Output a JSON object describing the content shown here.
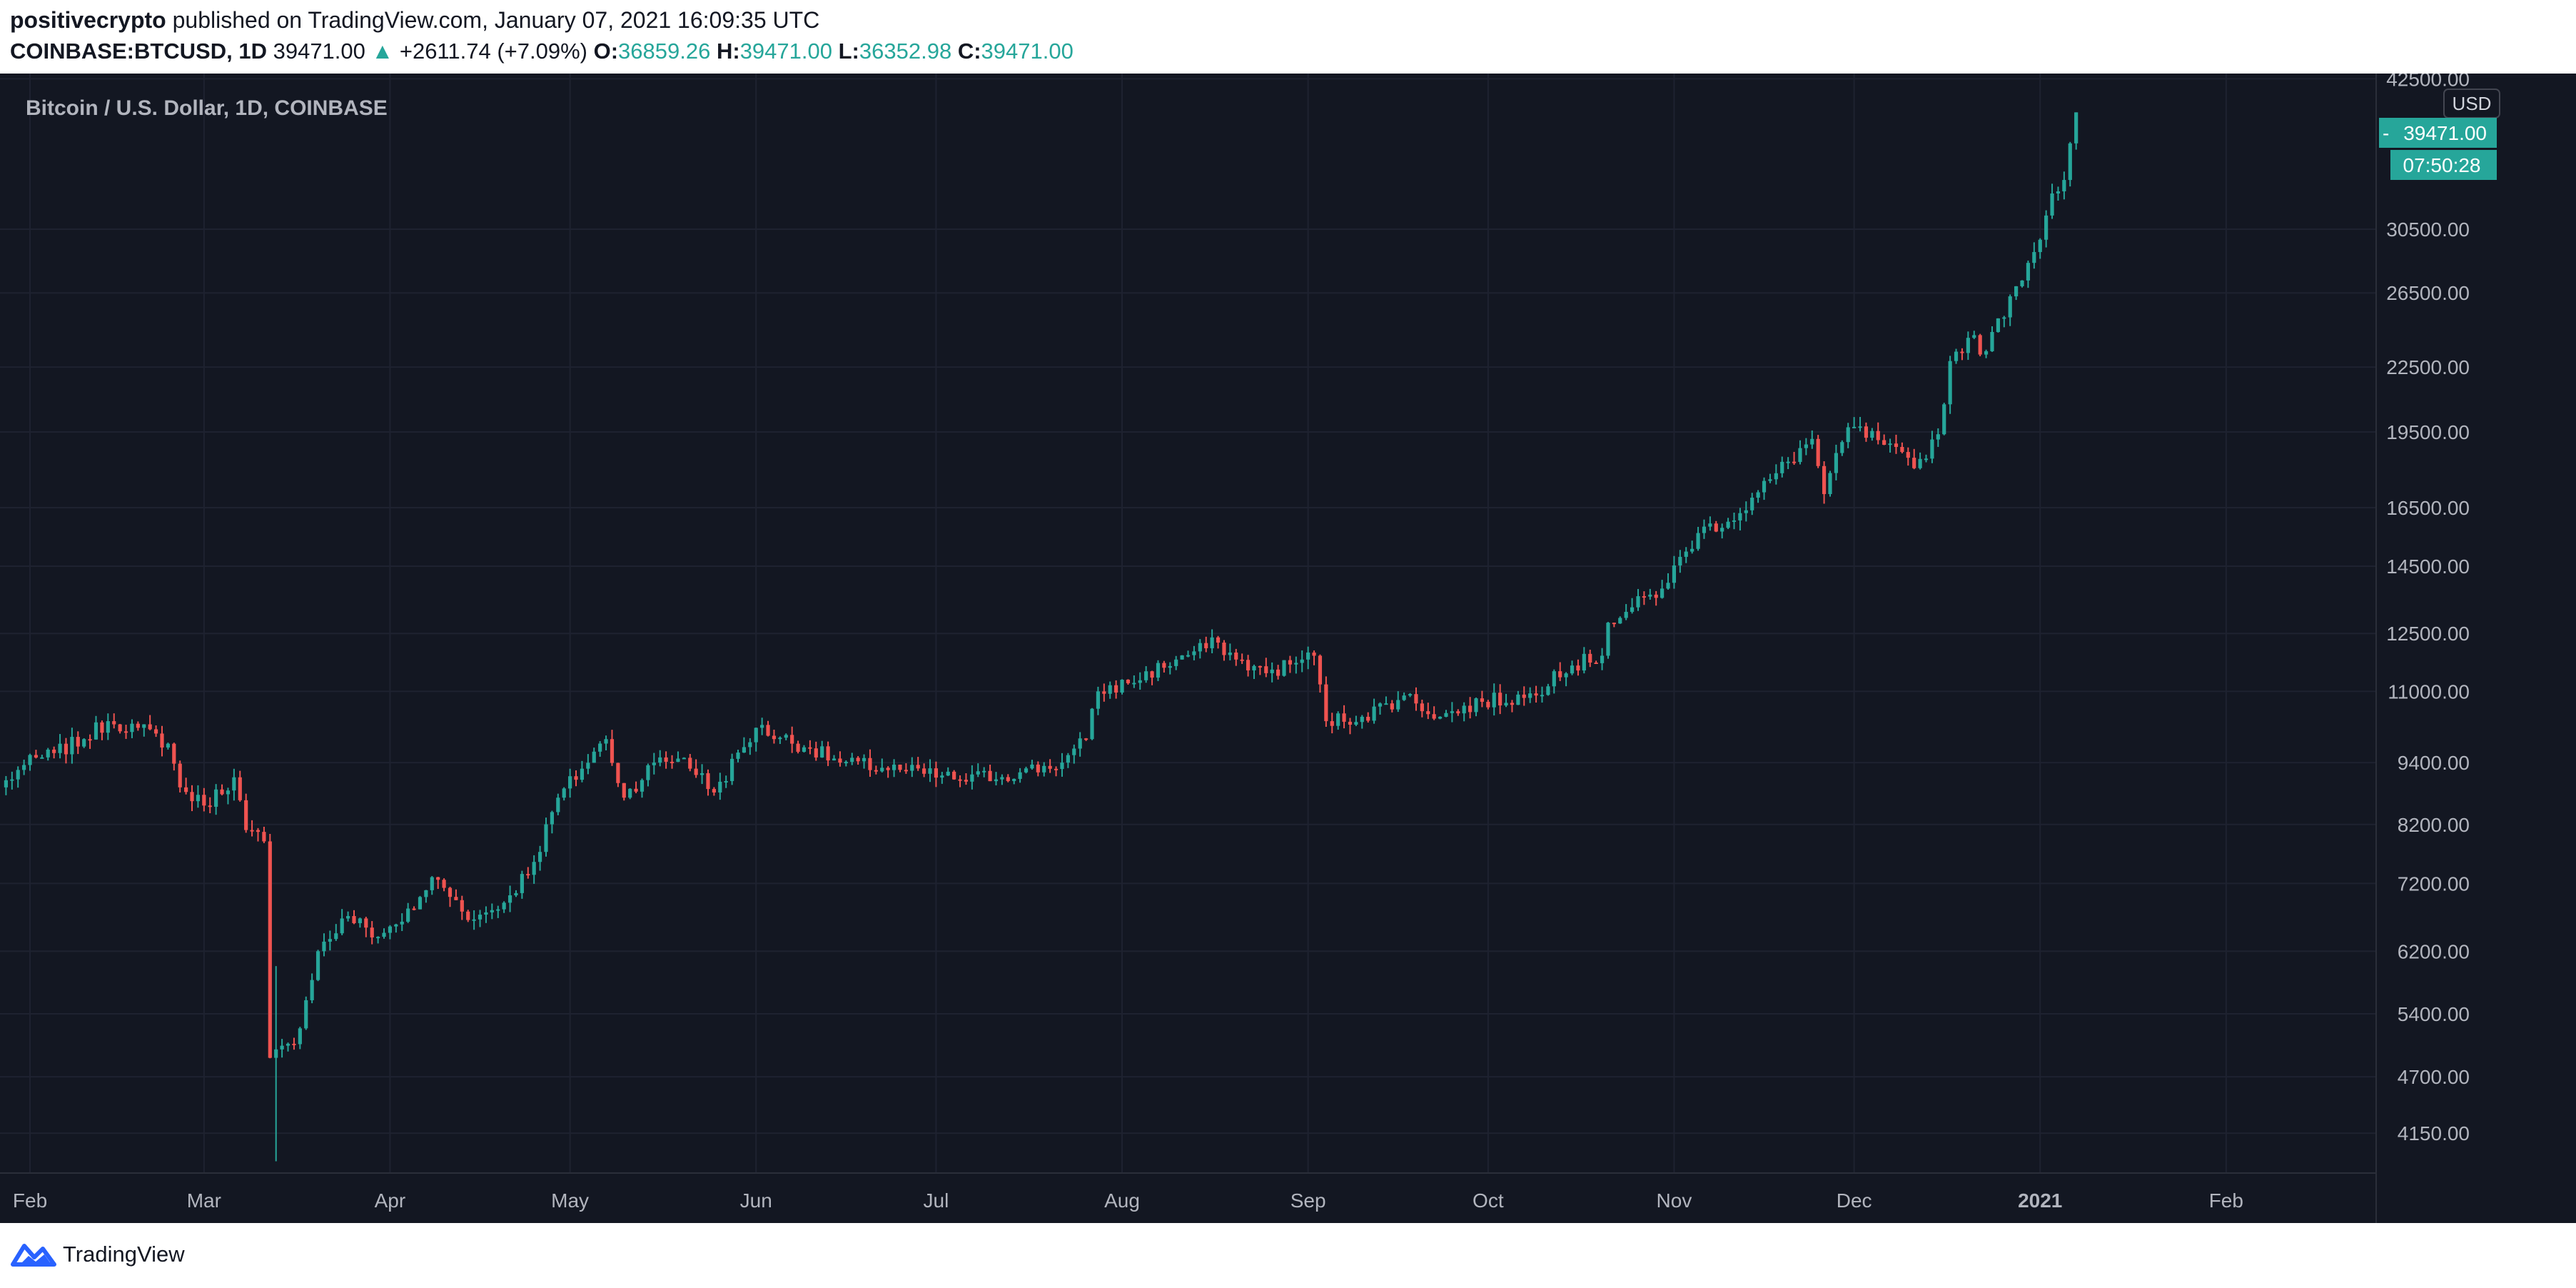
{
  "header": {
    "author": "positivecrypto",
    "published_text": "published on TradingView.com, January 07, 2021 16:09:35 UTC",
    "symbol": "COINBASE:BTCUSD, 1D",
    "last": "39471.00",
    "up_arrow": "▲",
    "change": "+2611.74 (+7.09%)",
    "o_label": "O:",
    "o_value": "36859.26",
    "h_label": "H:",
    "h_value": "39471.00",
    "l_label": "L:",
    "l_value": "36352.98",
    "c_label": "C:",
    "c_value": "39471.00"
  },
  "chart_title": "Bitcoin / U.S. Dollar, 1D, COINBASE",
  "currency_badge": "USD",
  "last_price_label": "39471.00",
  "countdown_label": "07:50:28",
  "footer_brand": "TradingView",
  "colors": {
    "background": "#131722",
    "grid": "#1e2230",
    "up": "#26a69a",
    "down": "#ef5350",
    "axis_text": "#b2b5be"
  },
  "chart_data": {
    "type": "candlestick",
    "title": "Bitcoin / U.S. Dollar, 1D, COINBASE",
    "y_scale": "log",
    "y_range": [
      3800,
      43000
    ],
    "y_ticks": [
      42500,
      30500,
      26500,
      22500,
      19500,
      16500,
      14500,
      12500,
      11000,
      9400,
      8200,
      7200,
      6200,
      5400,
      4700,
      4150
    ],
    "y_tick_labels": [
      "42500.00",
      "30500.00",
      "26500.00",
      "22500.00",
      "19500.00",
      "16500.00",
      "14500.00",
      "12500.00",
      "11000.00",
      "9400.00",
      "8200.00",
      "7200.00",
      "6200.00",
      "5400.00",
      "4700.00",
      "4150.00"
    ],
    "x_range": [
      "2020-01-27",
      "2021-02-26"
    ],
    "x_ticks": [
      "2020-02-01",
      "2020-03-01",
      "2020-04-01",
      "2020-05-01",
      "2020-06-01",
      "2020-07-01",
      "2020-08-01",
      "2020-09-01",
      "2020-10-01",
      "2020-11-01",
      "2020-12-01",
      "2021-01-01",
      "2021-02-01"
    ],
    "x_tick_labels": [
      "Feb",
      "Mar",
      "Apr",
      "May",
      "Jun",
      "Jul",
      "Aug",
      "Sep",
      "Oct",
      "Nov",
      "Dec",
      "2021",
      "Feb"
    ],
    "series_close_anchors": [
      [
        "2020-01-27",
        8900
      ],
      [
        "2020-01-31",
        9350
      ],
      [
        "2020-02-05",
        9600
      ],
      [
        "2020-02-10",
        9900
      ],
      [
        "2020-02-14",
        10300
      ],
      [
        "2020-02-19",
        10150
      ],
      [
        "2020-02-24",
        9800
      ],
      [
        "2020-02-26",
        8900
      ],
      [
        "2020-03-01",
        8550
      ],
      [
        "2020-03-06",
        9100
      ],
      [
        "2020-03-08",
        8100
      ],
      [
        "2020-03-11",
        7900
      ],
      [
        "2020-03-12",
        4900
      ],
      [
        "2020-03-16",
        5050
      ],
      [
        "2020-03-20",
        6200
      ],
      [
        "2020-03-25",
        6700
      ],
      [
        "2020-03-30",
        6400
      ],
      [
        "2020-04-05",
        6800
      ],
      [
        "2020-04-08",
        7300
      ],
      [
        "2020-04-15",
        6650
      ],
      [
        "2020-04-20",
        6900
      ],
      [
        "2020-04-25",
        7550
      ],
      [
        "2020-04-29",
        8700
      ],
      [
        "2020-05-07",
        9900
      ],
      [
        "2020-05-10",
        8700
      ],
      [
        "2020-05-15",
        9400
      ],
      [
        "2020-05-20",
        9500
      ],
      [
        "2020-05-25",
        8800
      ],
      [
        "2020-06-01",
        10150
      ],
      [
        "2020-06-10",
        9700
      ],
      [
        "2020-06-15",
        9400
      ],
      [
        "2020-06-25",
        9250
      ],
      [
        "2020-07-05",
        9050
      ],
      [
        "2020-07-15",
        9200
      ],
      [
        "2020-07-22",
        9400
      ],
      [
        "2020-07-26",
        9900
      ],
      [
        "2020-07-28",
        11000
      ],
      [
        "2020-08-02",
        11200
      ],
      [
        "2020-08-10",
        11800
      ],
      [
        "2020-08-17",
        12250
      ],
      [
        "2020-08-20",
        11800
      ],
      [
        "2020-08-25",
        11450
      ],
      [
        "2020-08-31",
        11800
      ],
      [
        "2020-09-02",
        11900
      ],
      [
        "2020-09-04",
        10300
      ],
      [
        "2020-09-10",
        10400
      ],
      [
        "2020-09-17",
        10900
      ],
      [
        "2020-09-23",
        10400
      ],
      [
        "2020-09-30",
        10750
      ],
      [
        "2020-10-09",
        10900
      ],
      [
        "2020-10-12",
        11500
      ],
      [
        "2020-10-20",
        11900
      ],
      [
        "2020-10-21",
        12800
      ],
      [
        "2020-10-30",
        13800
      ],
      [
        "2020-11-05",
        15600
      ],
      [
        "2020-11-12",
        16300
      ],
      [
        "2020-11-18",
        17800
      ],
      [
        "2020-11-24",
        19200
      ],
      [
        "2020-11-26",
        17000
      ],
      [
        "2020-11-30",
        19700
      ],
      [
        "2020-12-05",
        19150
      ],
      [
        "2020-12-11",
        18000
      ],
      [
        "2020-12-15",
        19400
      ],
      [
        "2020-12-17",
        22800
      ],
      [
        "2020-12-20",
        24000
      ],
      [
        "2020-12-23",
        23300
      ],
      [
        "2020-12-27",
        26300
      ],
      [
        "2020-12-31",
        29000
      ],
      [
        "2021-01-03",
        33000
      ],
      [
        "2021-01-05",
        34000
      ],
      [
        "2021-01-06",
        36859
      ],
      [
        "2021-01-07",
        39471
      ]
    ]
  }
}
